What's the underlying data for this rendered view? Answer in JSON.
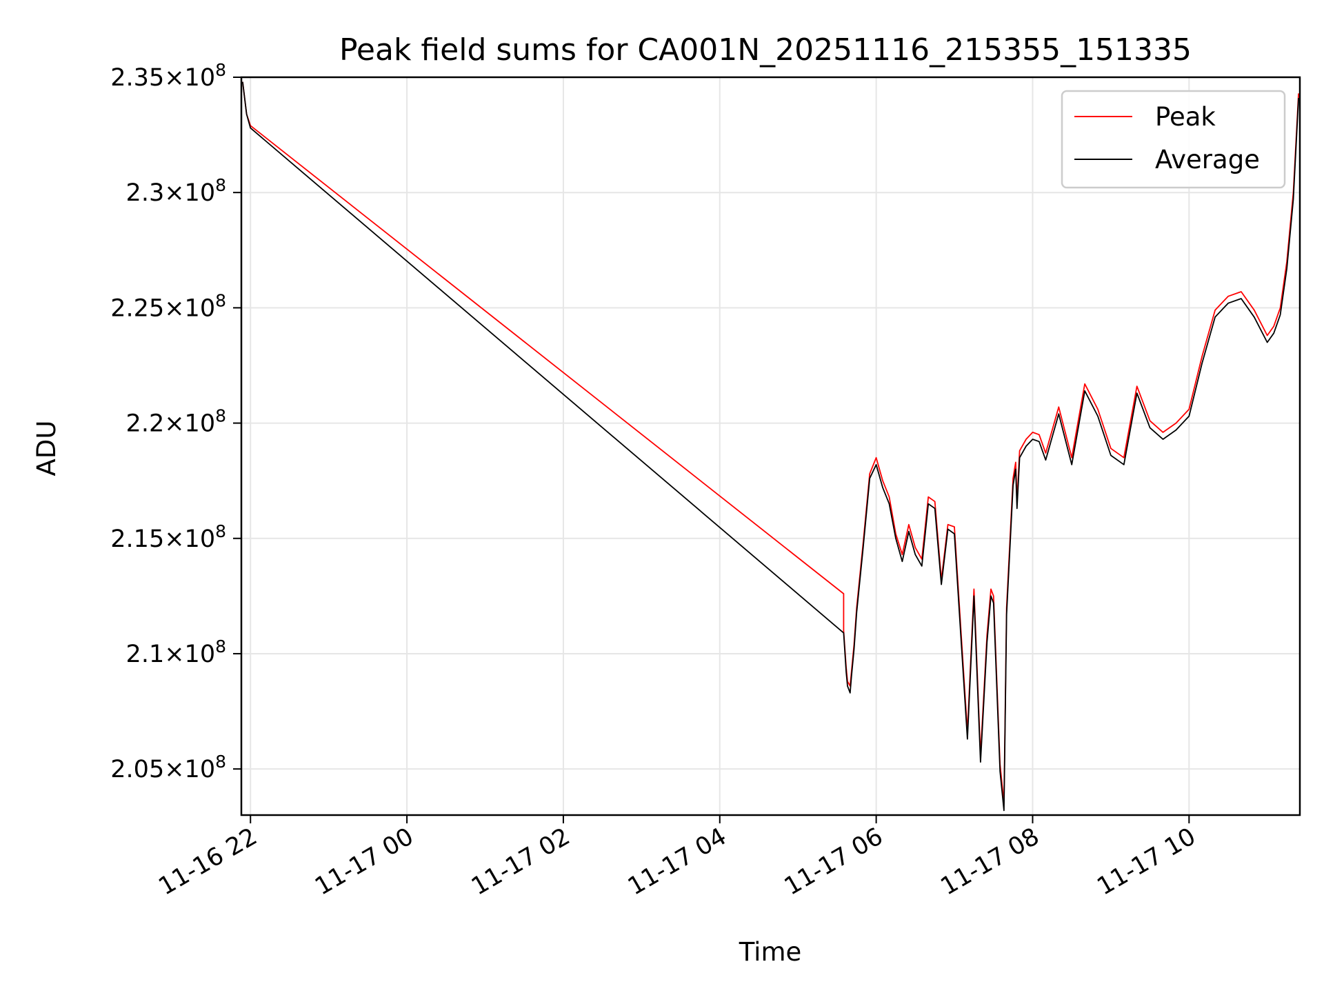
{
  "chart_data": {
    "type": "line",
    "title": "Peak field sums for CA001N_20251116_215355_151335",
    "xlabel": "Time",
    "ylabel": "ADU",
    "grid": true,
    "legend_position": "top-right",
    "xlim": [
      "2025-11-16 21:53",
      "2025-11-17 11:25"
    ],
    "ylim": [
      203000000,
      235000000
    ],
    "xticks": [
      {
        "value": "2025-11-16 22:00",
        "label": "11-16 22"
      },
      {
        "value": "2025-11-17 00:00",
        "label": "11-17 00"
      },
      {
        "value": "2025-11-17 02:00",
        "label": "11-17 02"
      },
      {
        "value": "2025-11-17 04:00",
        "label": "11-17 04"
      },
      {
        "value": "2025-11-17 06:00",
        "label": "11-17 06"
      },
      {
        "value": "2025-11-17 08:00",
        "label": "11-17 08"
      },
      {
        "value": "2025-11-17 10:00",
        "label": "11-17 10"
      }
    ],
    "yticks": [
      {
        "value": 205000000,
        "mantissa": "2.05",
        "base": "10",
        "exponent": "8"
      },
      {
        "value": 210000000,
        "mantissa": "2.1",
        "base": "10",
        "exponent": "8"
      },
      {
        "value": 215000000,
        "mantissa": "2.15",
        "base": "10",
        "exponent": "8"
      },
      {
        "value": 220000000,
        "mantissa": "2.2",
        "base": "10",
        "exponent": "8"
      },
      {
        "value": 225000000,
        "mantissa": "2.25",
        "base": "10",
        "exponent": "8"
      },
      {
        "value": 230000000,
        "mantissa": "2.3",
        "base": "10",
        "exponent": "8"
      },
      {
        "value": 235000000,
        "mantissa": "2.35",
        "base": "10",
        "exponent": "8"
      }
    ],
    "series": [
      {
        "name": "Peak",
        "color": "#ff0000",
        "x": [
          "2025-11-16 21:54",
          "2025-11-16 21:57",
          "2025-11-16 22:00",
          "2025-11-17 05:35",
          "2025-11-17 05:35",
          "2025-11-17 05:37",
          "2025-11-17 05:38",
          "2025-11-17 05:40",
          "2025-11-17 05:41",
          "2025-11-17 05:43",
          "2025-11-17 05:45",
          "2025-11-17 05:50",
          "2025-11-17 05:55",
          "2025-11-17 06:00",
          "2025-11-17 06:05",
          "2025-11-17 06:10",
          "2025-11-17 06:15",
          "2025-11-17 06:20",
          "2025-11-17 06:25",
          "2025-11-17 06:30",
          "2025-11-17 06:35",
          "2025-11-17 06:40",
          "2025-11-17 06:45",
          "2025-11-17 06:50",
          "2025-11-17 06:55",
          "2025-11-17 07:00",
          "2025-11-17 07:05",
          "2025-11-17 07:10",
          "2025-11-17 07:15",
          "2025-11-17 07:20",
          "2025-11-17 07:25",
          "2025-11-17 07:28",
          "2025-11-17 07:30",
          "2025-11-17 07:35",
          "2025-11-17 07:38",
          "2025-11-17 07:40",
          "2025-11-17 07:45",
          "2025-11-17 07:47",
          "2025-11-17 07:48",
          "2025-11-17 07:50",
          "2025-11-17 07:55",
          "2025-11-17 08:00",
          "2025-11-17 08:05",
          "2025-11-17 08:10",
          "2025-11-17 08:20",
          "2025-11-17 08:30",
          "2025-11-17 08:40",
          "2025-11-17 08:50",
          "2025-11-17 09:00",
          "2025-11-17 09:10",
          "2025-11-17 09:20",
          "2025-11-17 09:30",
          "2025-11-17 09:40",
          "2025-11-17 09:50",
          "2025-11-17 10:00",
          "2025-11-17 10:10",
          "2025-11-17 10:20",
          "2025-11-17 10:30",
          "2025-11-17 10:40",
          "2025-11-17 10:50",
          "2025-11-17 11:00",
          "2025-11-17 11:05",
          "2025-11-17 11:10",
          "2025-11-17 11:15",
          "2025-11-17 11:20",
          "2025-11-17 11:24"
        ],
        "y": [
          234800000,
          233400000,
          232900000,
          212600000,
          211000000,
          209400000,
          208800000,
          208600000,
          209200000,
          210400000,
          212000000,
          214800000,
          217800000,
          218500000,
          217500000,
          216800000,
          215200000,
          214300000,
          215600000,
          214600000,
          214100000,
          216800000,
          216600000,
          213200000,
          215600000,
          215500000,
          211000000,
          206600000,
          212800000,
          205600000,
          210800000,
          212800000,
          212500000,
          205200000,
          203500000,
          212000000,
          217600000,
          218300000,
          216600000,
          218800000,
          219300000,
          219600000,
          219500000,
          218700000,
          220700000,
          218500000,
          221700000,
          220600000,
          218900000,
          218500000,
          221600000,
          220100000,
          219600000,
          220000000,
          220600000,
          222900000,
          224900000,
          225500000,
          225700000,
          224900000,
          223800000,
          224200000,
          225000000,
          227000000,
          230000000,
          234300000
        ]
      },
      {
        "name": "Average",
        "color": "#000000",
        "x": [
          "2025-11-16 21:54",
          "2025-11-16 21:57",
          "2025-11-16 22:00",
          "2025-11-17 05:35",
          "2025-11-17 05:35",
          "2025-11-17 05:37",
          "2025-11-17 05:38",
          "2025-11-17 05:40",
          "2025-11-17 05:41",
          "2025-11-17 05:43",
          "2025-11-17 05:45",
          "2025-11-17 05:50",
          "2025-11-17 05:55",
          "2025-11-17 06:00",
          "2025-11-17 06:05",
          "2025-11-17 06:10",
          "2025-11-17 06:15",
          "2025-11-17 06:20",
          "2025-11-17 06:25",
          "2025-11-17 06:30",
          "2025-11-17 06:35",
          "2025-11-17 06:40",
          "2025-11-17 06:45",
          "2025-11-17 06:50",
          "2025-11-17 06:55",
          "2025-11-17 07:00",
          "2025-11-17 07:05",
          "2025-11-17 07:10",
          "2025-11-17 07:15",
          "2025-11-17 07:20",
          "2025-11-17 07:25",
          "2025-11-17 07:28",
          "2025-11-17 07:30",
          "2025-11-17 07:35",
          "2025-11-17 07:38",
          "2025-11-17 07:40",
          "2025-11-17 07:45",
          "2025-11-17 07:47",
          "2025-11-17 07:48",
          "2025-11-17 07:50",
          "2025-11-17 07:55",
          "2025-11-17 08:00",
          "2025-11-17 08:05",
          "2025-11-17 08:10",
          "2025-11-17 08:20",
          "2025-11-17 08:30",
          "2025-11-17 08:40",
          "2025-11-17 08:50",
          "2025-11-17 09:00",
          "2025-11-17 09:10",
          "2025-11-17 09:20",
          "2025-11-17 09:30",
          "2025-11-17 09:40",
          "2025-11-17 09:50",
          "2025-11-17 10:00",
          "2025-11-17 10:10",
          "2025-11-17 10:20",
          "2025-11-17 10:30",
          "2025-11-17 10:40",
          "2025-11-17 10:50",
          "2025-11-17 11:00",
          "2025-11-17 11:05",
          "2025-11-17 11:10",
          "2025-11-17 11:15",
          "2025-11-17 11:20",
          "2025-11-17 11:24"
        ],
        "y": [
          234800000,
          233400000,
          232800000,
          210900000,
          210900000,
          209200000,
          208600000,
          208300000,
          209000000,
          210200000,
          211800000,
          214600000,
          217600000,
          218200000,
          217200000,
          216500000,
          215000000,
          214000000,
          215300000,
          214300000,
          213800000,
          216500000,
          216300000,
          213000000,
          215400000,
          215200000,
          210700000,
          206300000,
          212500000,
          205300000,
          210500000,
          212500000,
          212200000,
          204900000,
          203200000,
          211700000,
          217300000,
          218000000,
          216300000,
          218500000,
          219000000,
          219300000,
          219200000,
          218400000,
          220400000,
          218200000,
          221400000,
          220300000,
          218600000,
          218200000,
          221300000,
          219800000,
          219300000,
          219700000,
          220300000,
          222600000,
          224600000,
          225200000,
          225400000,
          224600000,
          223500000,
          223900000,
          224700000,
          226700000,
          229700000,
          234100000
        ]
      }
    ]
  }
}
